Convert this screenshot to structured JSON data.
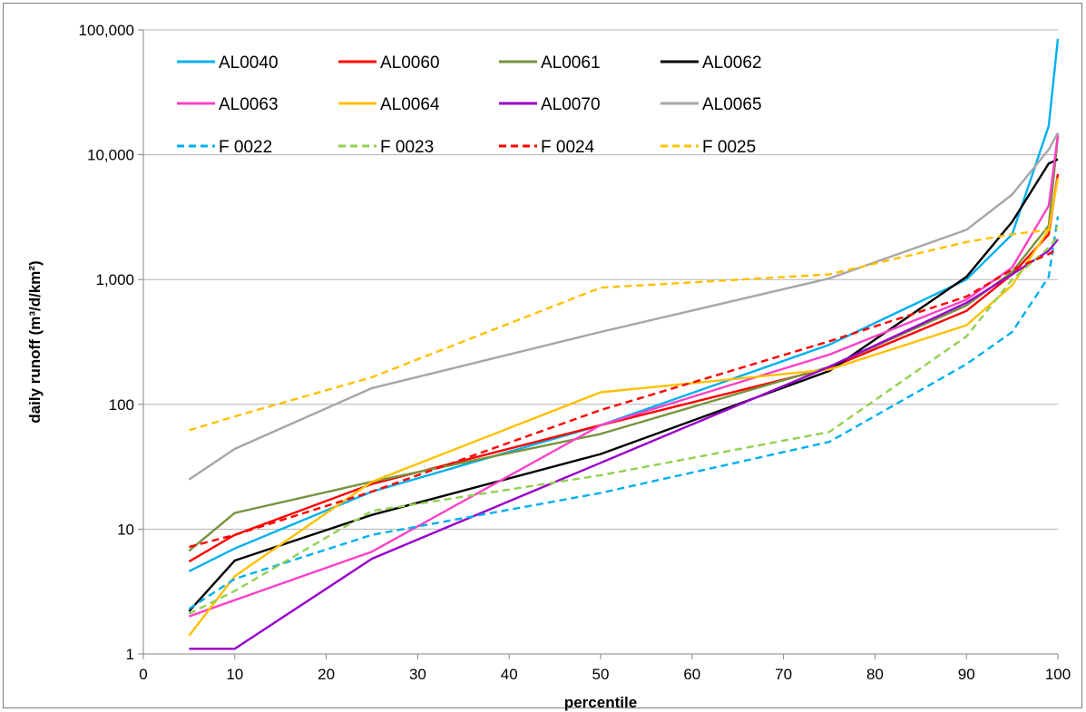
{
  "chart_data": {
    "type": "line",
    "xlabel": "percentile",
    "ylabel": "daily runoff (m³/d/km²)",
    "xlim": [
      0,
      100
    ],
    "ylim": [
      1,
      100000
    ],
    "yscale": "log",
    "x_ticks": [
      "0",
      "10",
      "20",
      "30",
      "40",
      "50",
      "60",
      "70",
      "80",
      "90",
      "100"
    ],
    "y_ticks": [
      "1",
      "10",
      "100",
      "1,000",
      "10,000",
      "100,000"
    ],
    "grid": "horizontal",
    "legend_position": "top-left",
    "x": [
      5,
      10,
      25,
      50,
      75,
      90,
      95,
      99,
      100
    ],
    "series": [
      {
        "name": "AL0040",
        "color": "#00B0F0",
        "dash": false,
        "values": [
          4.6,
          7,
          20,
          68,
          300,
          1000,
          2300,
          17000,
          85000
        ]
      },
      {
        "name": "AL0060",
        "color": "#FF0000",
        "dash": false,
        "values": [
          5.5,
          9,
          23,
          68,
          195,
          560,
          1100,
          2300,
          7000
        ]
      },
      {
        "name": "AL0061",
        "color": "#77933C",
        "dash": false,
        "values": [
          6.7,
          13.5,
          24,
          58,
          200,
          620,
          1150,
          2700,
          14000
        ]
      },
      {
        "name": "AL0062",
        "color": "#000000",
        "dash": false,
        "values": [
          2.2,
          5.6,
          13,
          40,
          185,
          1050,
          2900,
          8500,
          9200
        ]
      },
      {
        "name": "AL0063",
        "color": "#FF40C8",
        "dash": false,
        "values": [
          2,
          2.7,
          6.6,
          68,
          250,
          690,
          1250,
          3900,
          14500
        ]
      },
      {
        "name": "AL0064",
        "color": "#FFC000",
        "dash": false,
        "values": [
          1.4,
          4.2,
          24,
          125,
          190,
          430,
          900,
          2500,
          6500
        ]
      },
      {
        "name": "AL0070",
        "color": "#9900CC",
        "dash": false,
        "values": [
          1.1,
          1.1,
          5.8,
          34,
          200,
          650,
          1100,
          1700,
          2100
        ]
      },
      {
        "name": "AL0065",
        "color": "#A6A6A6",
        "dash": false,
        "values": [
          25,
          44,
          135,
          380,
          1020,
          2500,
          4800,
          11000,
          15000
        ]
      },
      {
        "name": "F 0022",
        "color": "#00B0F0",
        "dash": true,
        "values": [
          2.3,
          4,
          9,
          19.5,
          50,
          210,
          380,
          1050,
          3200
        ]
      },
      {
        "name": "F 0023",
        "color": "#92D050",
        "dash": true,
        "values": [
          2.1,
          3.2,
          14,
          27,
          60,
          350,
          1000,
          1800,
          2200
        ]
      },
      {
        "name": "F 0024",
        "color": "#FF0000",
        "dash": true,
        "values": [
          7.2,
          9,
          20,
          90,
          320,
          730,
          1200,
          1600,
          1750
        ]
      },
      {
        "name": "F 0025",
        "color": "#FFC000",
        "dash": true,
        "values": [
          62,
          80,
          165,
          860,
          1100,
          2000,
          2300,
          2500,
          2600
        ]
      }
    ]
  }
}
